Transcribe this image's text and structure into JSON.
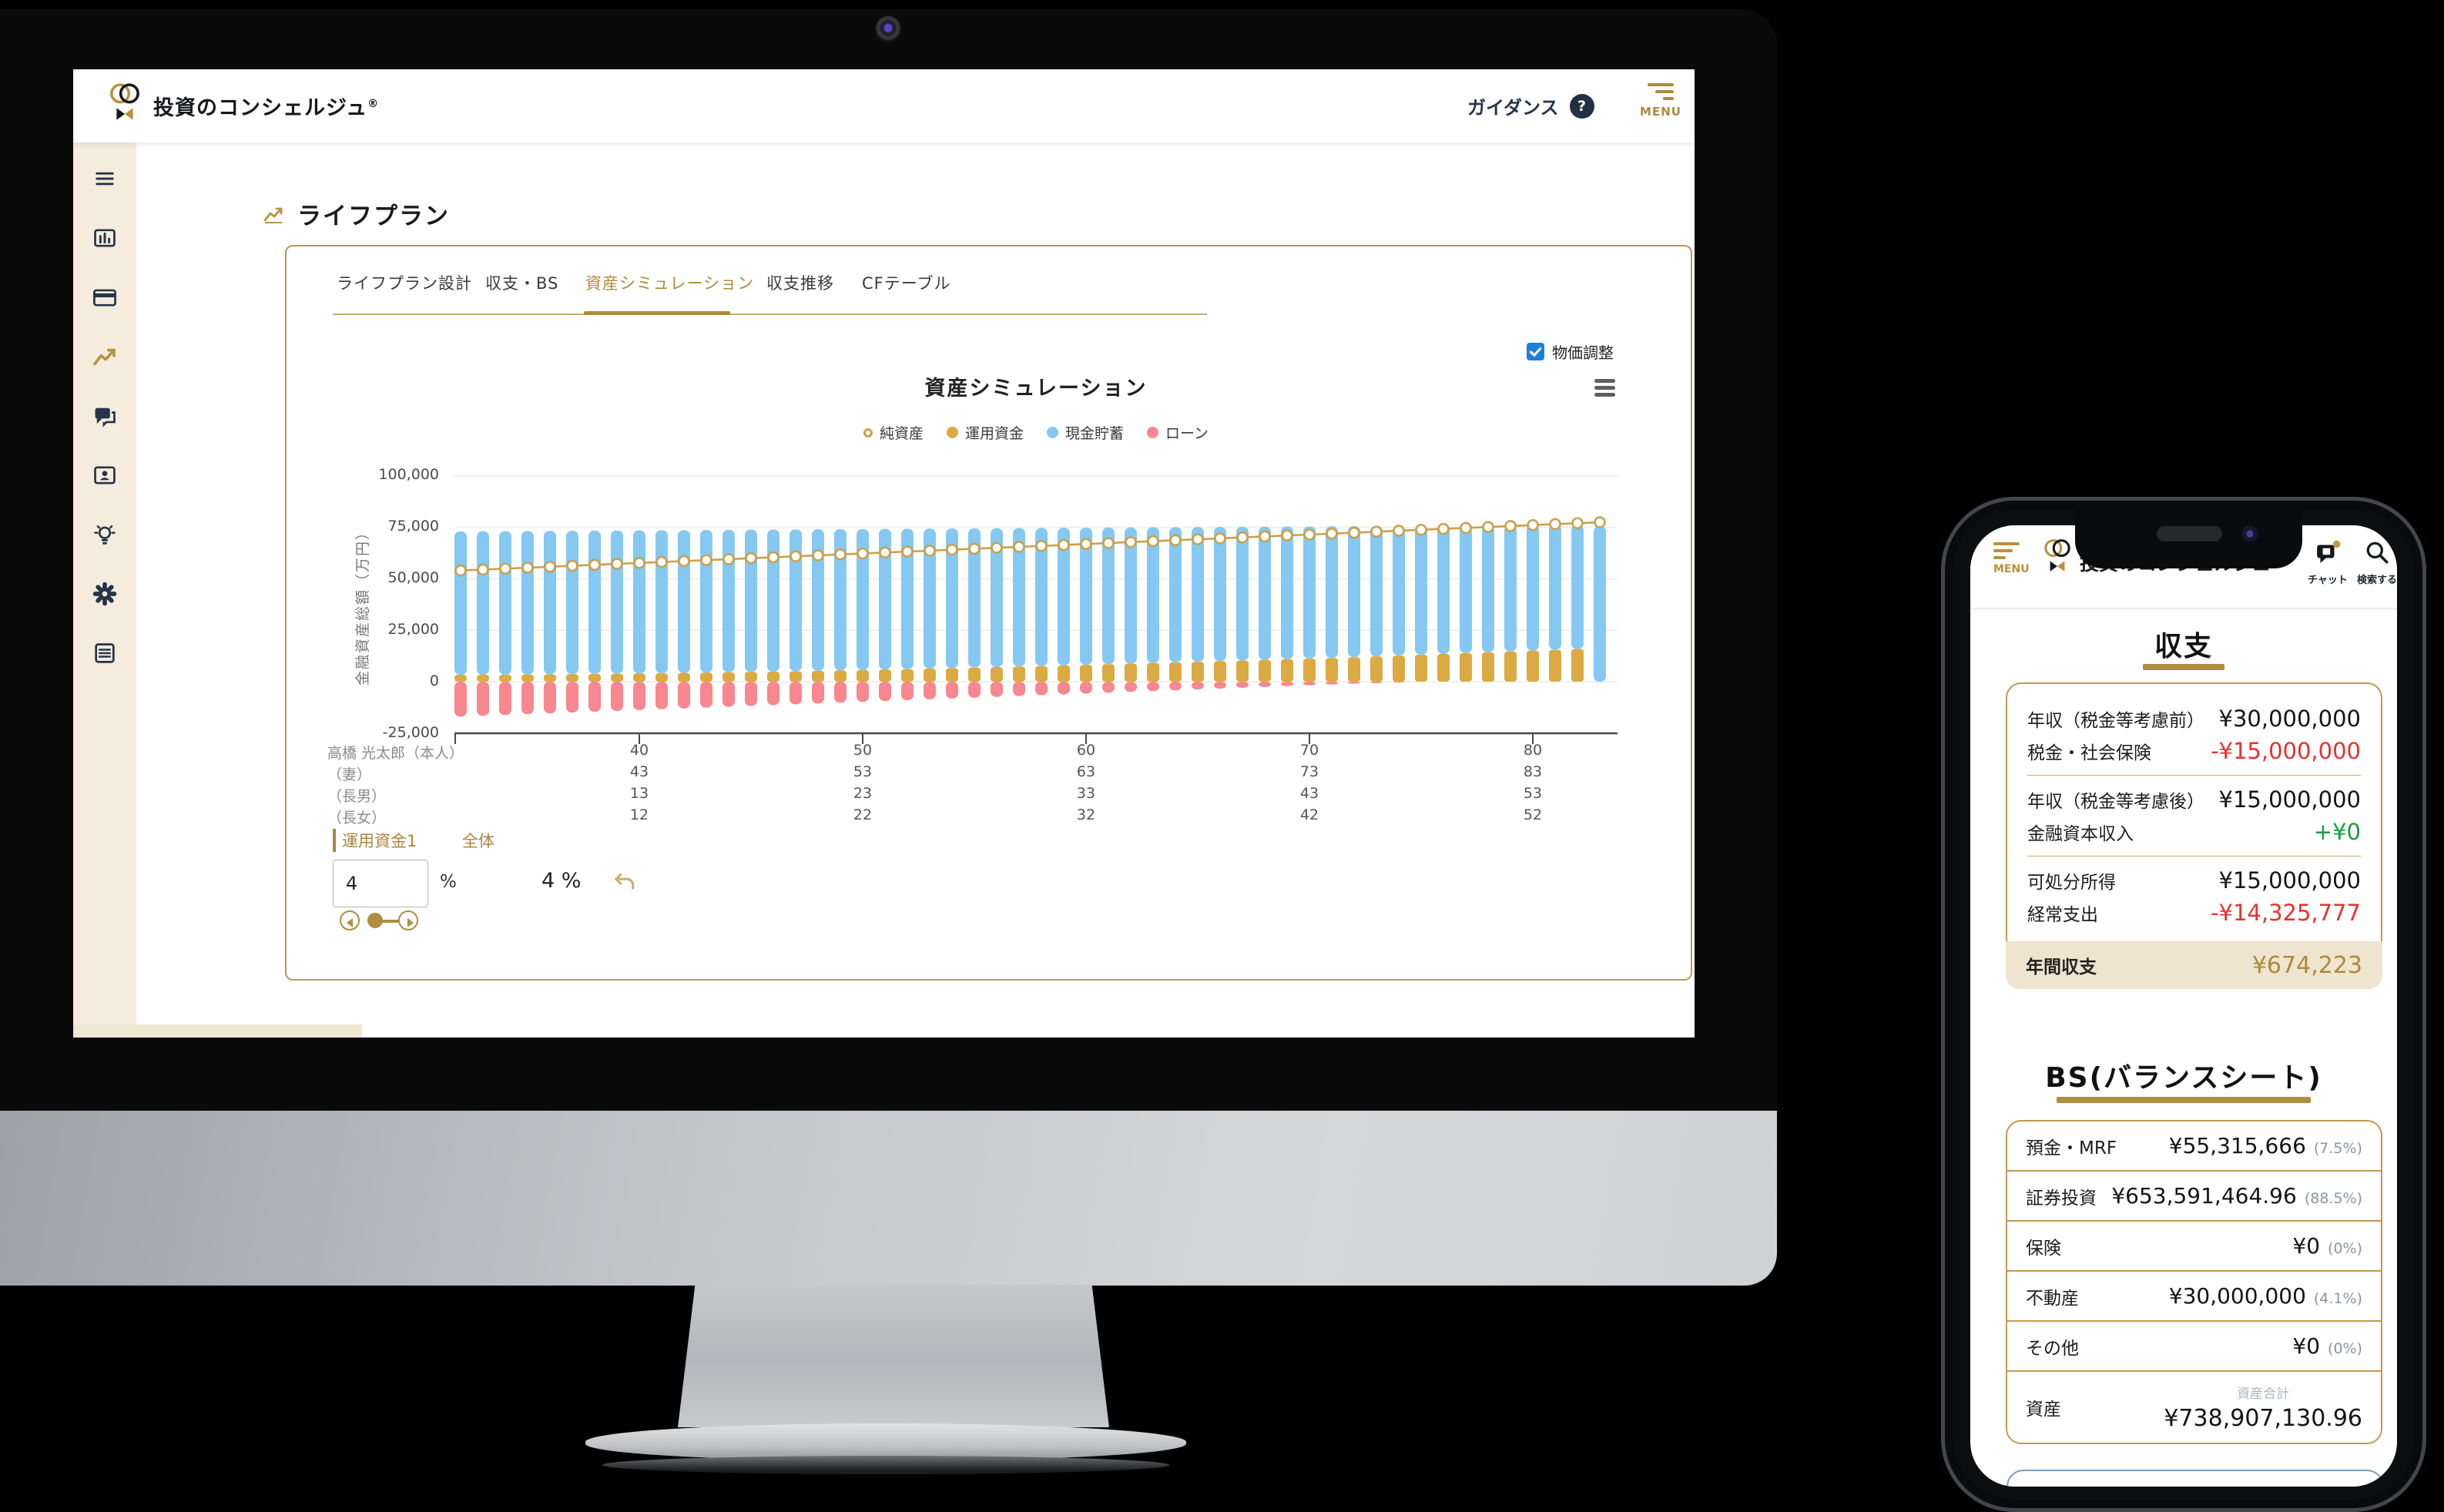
{
  "desktop": {
    "header": {
      "brand": "投資のコンシェルジュ",
      "reg_mark": "®",
      "guidance_label": "ガイダンス",
      "help_glyph": "?",
      "menu_label": "MENU"
    },
    "page_title": "ライフプラン",
    "tabs": [
      {
        "label": "ライフプラン設計",
        "active": false
      },
      {
        "label": "収支・BS",
        "active": false
      },
      {
        "label": "資産シミュレーション",
        "active": true
      },
      {
        "label": "収支推移",
        "active": false
      },
      {
        "label": "CFテーブル",
        "active": false
      }
    ],
    "price_toggle_label": "物価調整",
    "family_table": {
      "rows": [
        {
          "label": "高橋 光太郎（本人）",
          "ages": [
            "40",
            "50",
            "60",
            "70",
            "80"
          ]
        },
        {
          "label": "（妻）",
          "ages": [
            "43",
            "53",
            "63",
            "73",
            "83"
          ]
        },
        {
          "label": "（長男）",
          "ages": [
            "13",
            "23",
            "33",
            "43",
            "53"
          ]
        },
        {
          "label": "（長女）",
          "ages": [
            "12",
            "22",
            "32",
            "42",
            "52"
          ]
        }
      ]
    },
    "controls": {
      "fund_tab": "運用資金1",
      "overall_tab": "全体",
      "rate_value": "4",
      "rate_unit": "%",
      "overall_rate": "4 %"
    }
  },
  "chart_data": {
    "type": "bar",
    "subtype": "stacked-bars-with-line",
    "title": "資産シミュレーション",
    "ylabel": "金融資産総額（万円）",
    "y_tick_values": [
      100000,
      75000,
      50000,
      25000,
      0,
      -25000
    ],
    "y_tick_labels": [
      "100,000",
      "75,000",
      "50,000",
      "25,000",
      "0",
      "-25,000"
    ],
    "ylim": [
      -30000,
      105000
    ],
    "x_tick_ages": [
      40,
      50,
      60,
      70,
      80
    ],
    "age_start": 32,
    "grid": true,
    "legend_position": "top-center",
    "legend": [
      {
        "name": "純資産",
        "style": "line-marker",
        "color": "#caa14e"
      },
      {
        "name": "運用資金",
        "style": "dot",
        "color": "#dcaa42"
      },
      {
        "name": "現金貯蓄",
        "style": "dot",
        "color": "#85c9f2"
      },
      {
        "name": "ローン",
        "style": "dot",
        "color": "#f8878f"
      }
    ],
    "series": {
      "invest": {
        "name": "運用資金",
        "color": "#dcaa42",
        "values": [
          3300,
          3350,
          3400,
          3500,
          3600,
          3700,
          3800,
          3900,
          4000,
          4100,
          4250,
          4400,
          4550,
          4700,
          4900,
          5100,
          5300,
          5500,
          5700,
          5900,
          6100,
          6350,
          6600,
          6850,
          7100,
          7350,
          7600,
          7900,
          8200,
          8500,
          8800,
          9100,
          9400,
          9700,
          10000,
          10300,
          10600,
          10900,
          11200,
          11500,
          11900,
          12300,
          12700,
          13100,
          13500,
          13900,
          14300,
          14700,
          15100,
          15500,
          15900,
          0
        ]
      },
      "cash": {
        "name": "現金貯蓄",
        "color": "#85c9f2",
        "values": [
          69700,
          69715,
          69730,
          69695,
          69660,
          69625,
          69590,
          69555,
          69520,
          69485,
          69400,
          69315,
          69230,
          69145,
          69010,
          68875,
          68740,
          68605,
          68470,
          68335,
          68200,
          68015,
          67830,
          67645,
          67460,
          67275,
          67090,
          66855,
          66620,
          66385,
          66150,
          65915,
          65680,
          65445,
          65210,
          64975,
          64740,
          64505,
          64270,
          64035,
          63700,
          63365,
          63030,
          62695,
          62360,
          62025,
          61690,
          61355,
          61020,
          60685,
          60350,
          75600
        ]
      },
      "loan": {
        "name": "ローン",
        "color": "#f8878f",
        "values": [
          -17000,
          -16600,
          -16200,
          -15800,
          -15400,
          -15000,
          -14600,
          -14200,
          -13800,
          -13400,
          -13000,
          -12600,
          -12200,
          -11800,
          -11400,
          -11000,
          -10600,
          -10200,
          -9800,
          -9400,
          -9000,
          -8600,
          -8200,
          -7800,
          -7400,
          -7000,
          -6600,
          -6200,
          -5800,
          -5400,
          -5000,
          -4600,
          -4200,
          -3800,
          -3400,
          -3000,
          -2600,
          -2200,
          -1800,
          -1400,
          -1000,
          -700,
          -400,
          -200,
          -100,
          0,
          0,
          0,
          0,
          0,
          0,
          0
        ]
      },
      "net": {
        "name": "純資産",
        "color": "#caa14e",
        "values": [
          54000,
          54460,
          54920,
          55380,
          55840,
          56300,
          56760,
          57220,
          57680,
          58140,
          58600,
          59060,
          59520,
          59980,
          60440,
          60900,
          61360,
          61820,
          62280,
          62740,
          63200,
          63660,
          64120,
          64580,
          65040,
          65500,
          65960,
          66420,
          66880,
          67340,
          67800,
          68260,
          68720,
          69180,
          69640,
          70100,
          70560,
          71020,
          71480,
          71940,
          72400,
          72860,
          73320,
          73780,
          74240,
          74700,
          75160,
          75620,
          76080,
          76540,
          77000,
          77460
        ]
      }
    }
  },
  "phone": {
    "header": {
      "menu_label": "MENU",
      "brand": "投資のコンシェルジュ",
      "chat_label": "チャット",
      "search_label": "検索する"
    },
    "income": {
      "title": "収支",
      "rows": [
        {
          "label": "年収（税金等考慮前）",
          "value": "¥30,000,000",
          "tone": "default"
        },
        {
          "label": "税金・社会保険",
          "value": "-¥15,000,000",
          "tone": "negative"
        },
        {
          "divider": true
        },
        {
          "label": "年収（税金等考慮後）",
          "value": "¥15,000,000",
          "tone": "default"
        },
        {
          "label": "金融資本収入",
          "value": "+¥0",
          "tone": "positive"
        },
        {
          "divider": true
        },
        {
          "label": "可処分所得",
          "value": "¥15,000,000",
          "tone": "default"
        },
        {
          "label": "経常支出",
          "value": "-¥14,325,777",
          "tone": "negative"
        }
      ],
      "total": {
        "label": "年間収支",
        "value": "¥674,223"
      }
    },
    "balance": {
      "title": "BS(バランスシート)",
      "rows": [
        {
          "label": "預金・MRF",
          "value": "¥55,315,666",
          "pct": "(7.5%)"
        },
        {
          "label": "証券投資",
          "value": "¥653,591,464.96",
          "pct": "(88.5%)"
        },
        {
          "label": "保険",
          "value": "¥0",
          "pct": "(0%)"
        },
        {
          "label": "不動産",
          "value": "¥30,000,000",
          "pct": "(4.1%)"
        },
        {
          "label": "その他",
          "value": "¥0",
          "pct": "(0%)"
        }
      ],
      "total": {
        "label": "資産",
        "sub_label": "資産合計",
        "value": "¥738,907,130.96"
      }
    }
  }
}
